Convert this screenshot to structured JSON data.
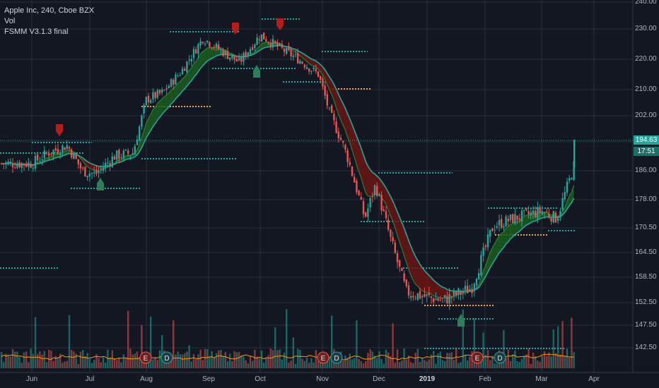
{
  "legend": {
    "title": "Apple Inc, 240, Cboe BZX",
    "volume": "Vol",
    "indicator": "FSMM V3.1.3 final"
  },
  "price_tag": {
    "last": "194.63",
    "countdown": "17:51",
    "color": "#26a69a"
  },
  "colors": {
    "background": "#131722",
    "grid": "#2a2e39",
    "up": "#26a69a",
    "down": "#ef5350",
    "ma_fast": "#c62828",
    "ma_slow": "#26a69a",
    "levels": "#26a69a",
    "levels_alt": "#f0a35c"
  },
  "chart_data": {
    "type": "candlestick",
    "title": "Apple Inc, 240, Cboe BZX",
    "ylim": [
      140,
      240
    ],
    "y_ticks": [
      "240.00",
      "230.00",
      "220.00",
      "210.00",
      "202.00",
      "194.00",
      "186.00",
      "178.00",
      "170.50",
      "164.50",
      "158.50",
      "152.50",
      "147.50",
      "142.50"
    ],
    "x_ticks": [
      "Jun",
      "Jul",
      "Aug",
      "Sep",
      "Oct",
      "Nov",
      "Dec",
      "2019",
      "Feb",
      "Mar",
      "Apr"
    ],
    "price_path": [
      [
        "2018-06-01",
        188
      ],
      [
        "2018-06-10",
        191
      ],
      [
        "2018-06-20",
        193
      ],
      [
        "2018-06-28",
        186
      ],
      [
        "2018-07-05",
        185
      ],
      [
        "2018-07-15",
        190
      ],
      [
        "2018-07-25",
        191
      ],
      [
        "2018-08-01",
        207
      ],
      [
        "2018-08-10",
        209
      ],
      [
        "2018-08-20",
        216
      ],
      [
        "2018-09-01",
        227
      ],
      [
        "2018-09-10",
        223
      ],
      [
        "2018-09-20",
        219
      ],
      [
        "2018-10-01",
        228
      ],
      [
        "2018-10-10",
        224
      ],
      [
        "2018-10-20",
        220
      ],
      [
        "2018-10-30",
        215
      ],
      [
        "2018-11-05",
        203
      ],
      [
        "2018-11-15",
        190
      ],
      [
        "2018-11-25",
        173
      ],
      [
        "2018-12-01",
        182
      ],
      [
        "2018-12-10",
        168
      ],
      [
        "2018-12-20",
        155
      ],
      [
        "2018-12-31",
        154
      ],
      [
        "2019-01-10",
        153
      ],
      [
        "2019-01-25",
        156
      ],
      [
        "2019-02-05",
        171
      ],
      [
        "2019-02-15",
        173
      ],
      [
        "2019-03-01",
        175
      ],
      [
        "2019-03-10",
        173
      ],
      [
        "2019-03-20",
        187
      ],
      [
        "2019-03-22",
        194.63
      ]
    ],
    "last_price": 194.63,
    "events": [
      "E",
      "D",
      "E",
      "D",
      "E",
      "D"
    ],
    "signals": [
      "down",
      "up",
      "down",
      "down",
      "up",
      "up"
    ],
    "series": [
      {
        "name": "Vol"
      },
      {
        "name": "FSMM V3.1.3 final"
      }
    ]
  }
}
